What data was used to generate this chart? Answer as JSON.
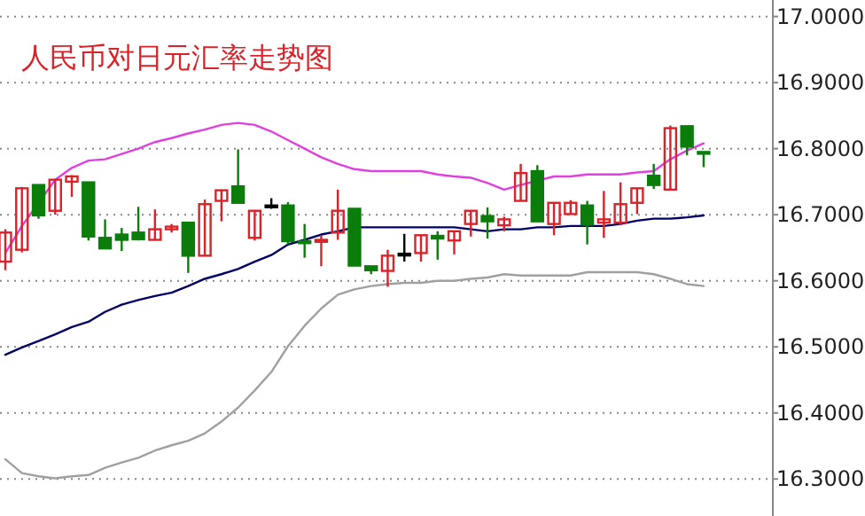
{
  "chart_data": {
    "type": "candlestick",
    "title": "人民币对日元汇率走势图",
    "categories": [
      null,
      null,
      null,
      null,
      null,
      null,
      null,
      null,
      null,
      null,
      null,
      null,
      null,
      null,
      null,
      null,
      null,
      null,
      null,
      null,
      null,
      null,
      null,
      null,
      null,
      null,
      null,
      null,
      null,
      null,
      null,
      null,
      null,
      null,
      null,
      null,
      null,
      null,
      null,
      null,
      null,
      null,
      null
    ],
    "ohlc": [
      [
        16.629,
        16.678,
        16.616,
        16.673
      ],
      [
        16.647,
        16.742,
        16.643,
        16.74
      ],
      [
        16.745,
        16.745,
        16.694,
        16.699
      ],
      [
        16.706,
        16.753,
        16.7,
        16.753
      ],
      [
        16.75,
        16.76,
        16.727,
        16.758
      ],
      [
        16.749,
        16.749,
        16.661,
        16.667
      ],
      [
        16.665,
        16.693,
        16.649,
        16.649
      ],
      [
        16.67,
        16.68,
        16.645,
        16.662
      ],
      [
        16.673,
        16.712,
        16.661,
        16.663
      ],
      [
        16.662,
        16.708,
        16.662,
        16.678
      ],
      [
        16.678,
        16.686,
        16.673,
        16.682
      ],
      [
        16.688,
        16.688,
        16.612,
        16.638
      ],
      [
        16.638,
        16.723,
        16.638,
        16.716
      ],
      [
        16.721,
        16.737,
        16.69,
        16.737
      ],
      [
        16.743,
        16.799,
        16.718,
        16.718
      ],
      [
        16.665,
        16.706,
        16.661,
        16.706
      ],
      [
        16.714,
        16.725,
        16.709,
        16.714
      ],
      [
        16.714,
        16.719,
        16.655,
        16.66
      ],
      [
        16.66,
        16.686,
        16.635,
        16.657
      ],
      [
        16.659,
        16.669,
        16.622,
        16.662
      ],
      [
        16.673,
        16.738,
        16.662,
        16.706
      ],
      [
        16.709,
        16.709,
        16.623,
        16.623
      ],
      [
        16.622,
        16.622,
        16.61,
        16.616
      ],
      [
        16.615,
        16.647,
        16.591,
        16.638
      ],
      [
        16.641,
        16.671,
        16.629,
        16.641
      ],
      [
        16.642,
        16.669,
        16.629,
        16.669
      ],
      [
        16.668,
        16.675,
        16.632,
        16.664
      ],
      [
        16.661,
        16.675,
        16.64,
        16.675
      ],
      [
        16.686,
        16.706,
        16.667,
        16.706
      ],
      [
        16.698,
        16.711,
        16.664,
        16.69
      ],
      [
        16.684,
        16.697,
        16.675,
        16.693
      ],
      [
        16.721,
        16.777,
        16.721,
        16.763
      ],
      [
        16.766,
        16.775,
        16.69,
        16.69
      ],
      [
        16.686,
        16.718,
        16.669,
        16.718
      ],
      [
        16.701,
        16.722,
        16.701,
        16.718
      ],
      [
        16.714,
        16.721,
        16.655,
        16.685
      ],
      [
        16.688,
        16.736,
        16.665,
        16.693
      ],
      [
        16.688,
        16.749,
        16.684,
        16.716
      ],
      [
        16.718,
        16.74,
        16.701,
        16.74
      ],
      [
        16.759,
        16.777,
        16.739,
        16.745
      ],
      [
        16.738,
        16.835,
        16.738,
        16.831
      ],
      [
        16.834,
        16.834,
        16.79,
        16.803
      ],
      [
        16.795,
        16.795,
        16.772,
        16.794
      ]
    ],
    "colors": [
      "#d8232a",
      "#d8232a",
      "#0b7d0b",
      "#d8232a",
      "#d8232a",
      "#0b7d0b",
      "#0b7d0b",
      "#0b7d0b",
      "#0b7d0b",
      "#d8232a",
      "#d8232a",
      "#0b7d0b",
      "#d8232a",
      "#d8232a",
      "#0b7d0b",
      "#d8232a",
      "#000000",
      "#0b7d0b",
      "#0b7d0b",
      "#d8232a",
      "#d8232a",
      "#0b7d0b",
      "#0b7d0b",
      "#d8232a",
      "#000000",
      "#d8232a",
      "#0b7d0b",
      "#d8232a",
      "#d8232a",
      "#0b7d0b",
      "#d8232a",
      "#d8232a",
      "#0b7d0b",
      "#d8232a",
      "#d8232a",
      "#0b7d0b",
      "#d8232a",
      "#d8232a",
      "#d8232a",
      "#0b7d0b",
      "#d8232a",
      "#0b7d0b",
      "#0b7d0b"
    ],
    "series": [
      {
        "type": "line",
        "color": "#e040e0",
        "values": [
          16.642,
          16.683,
          null,
          16.753,
          16.771,
          16.782,
          16.784,
          16.792,
          16.8,
          16.81,
          16.816,
          16.823,
          16.829,
          16.836,
          16.839,
          16.836,
          16.826,
          16.813,
          16.8,
          16.787,
          16.777,
          16.769,
          16.766,
          16.766,
          16.766,
          16.766,
          16.761,
          16.758,
          16.756,
          16.748,
          16.738,
          16.745,
          null,
          16.758,
          16.758,
          16.761,
          16.761,
          16.761,
          16.764,
          16.766,
          16.784,
          16.797,
          16.808
        ]
      },
      {
        "type": "line",
        "color": "#000066",
        "values": [
          16.488,
          16.499,
          16.509,
          16.519,
          16.53,
          16.538,
          16.553,
          16.564,
          16.571,
          16.577,
          16.582,
          16.592,
          16.603,
          16.61,
          16.618,
          16.629,
          16.639,
          16.655,
          16.662,
          16.67,
          16.675,
          16.681,
          16.681,
          16.681,
          16.681,
          16.681,
          16.681,
          16.681,
          16.678,
          16.675,
          16.678,
          16.678,
          16.681,
          16.681,
          16.683,
          16.683,
          16.683,
          16.686,
          16.691,
          16.694,
          16.694,
          16.696,
          16.699
        ]
      },
      {
        "type": "line",
        "color": "#a0a0a0",
        "values": [
          16.33,
          16.309,
          16.304,
          16.301,
          16.304,
          16.306,
          16.317,
          16.325,
          16.332,
          16.343,
          16.351,
          16.358,
          16.369,
          16.387,
          16.408,
          16.434,
          16.462,
          16.501,
          16.532,
          16.558,
          16.579,
          16.587,
          16.592,
          16.595,
          16.597,
          16.597,
          16.6,
          16.6,
          16.603,
          16.605,
          16.61,
          16.608,
          16.608,
          16.608,
          16.608,
          16.613,
          16.613,
          16.613,
          16.613,
          16.61,
          16.603,
          16.595,
          16.592
        ]
      }
    ],
    "ylim": [
      16.244,
      17.025
    ],
    "yticks": [
      {
        "value": 16.3,
        "label": "16.3000"
      },
      {
        "value": 16.4,
        "label": "16.4000"
      },
      {
        "value": 16.5,
        "label": "16.5000"
      },
      {
        "value": 16.6,
        "label": "16.6000"
      },
      {
        "value": 16.7,
        "label": "16.7000"
      },
      {
        "value": 16.8,
        "label": "16.8000"
      },
      {
        "value": 16.9,
        "label": "16.9000"
      },
      {
        "value": 17.0,
        "label": "17.0000"
      }
    ],
    "grid": "y",
    "tick_labels": "y"
  }
}
